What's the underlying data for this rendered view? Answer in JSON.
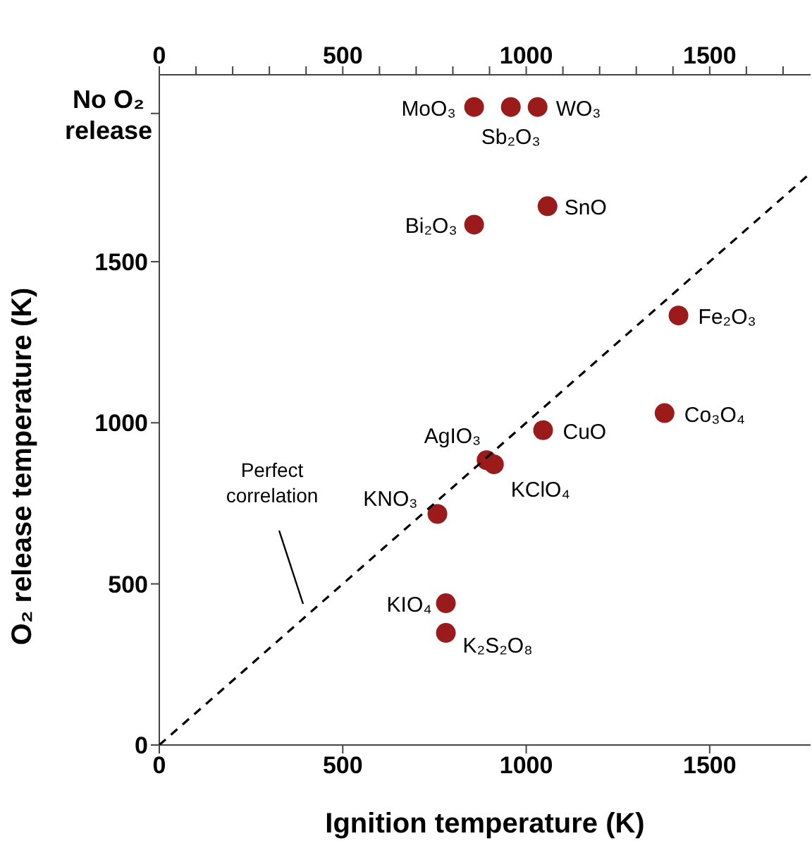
{
  "chart_data": {
    "type": "scatter",
    "xlabel": "Ignition temperature (K)",
    "ylabel": "O₂ release temperature (K)",
    "xlim": [
      0,
      1775
    ],
    "xticks": [
      0,
      500,
      1000,
      1500
    ],
    "x2lim": [
      0,
      1775
    ],
    "x2ticks": [
      0,
      {
        "value": 100,
        "label": null
      },
      {
        "value": 200,
        "label": null
      },
      {
        "value": 300,
        "label": null
      },
      {
        "value": 400,
        "label": null
      },
      500,
      {
        "value": 600,
        "label": null
      },
      {
        "value": 700,
        "label": null
      },
      {
        "value": 800,
        "label": null
      },
      {
        "value": 900,
        "label": null
      },
      1000,
      {
        "value": 1100,
        "label": null
      },
      {
        "value": 1200,
        "label": null
      },
      {
        "value": 1300,
        "label": null
      },
      {
        "value": 1400,
        "label": null
      },
      1500,
      {
        "value": 1600,
        "label": null
      },
      {
        "value": 1700,
        "label": null
      }
    ],
    "ylim": [
      0,
      2080
    ],
    "yticks": [
      0,
      500,
      1000,
      1500,
      {
        "value": 1960,
        "label": "No O₂ release"
      }
    ],
    "marker": "circle",
    "series": [
      {
        "color": "#9b1b1b",
        "x": [
          858,
          1058,
          1415,
          1377,
          1046,
          892,
          912,
          758,
          781,
          781,
          858,
          958,
          1031
        ],
        "values": [
          1615,
          1672,
          1333,
          1030,
          977,
          884,
          871,
          717,
          440,
          348,
          1980,
          1980,
          1980
        ]
      },
      {
        "type": "line",
        "color": "#000000",
        "line_style": "dashed",
        "marker": "none",
        "x": [
          0,
          1775
        ],
        "values": [
          0,
          1775
        ]
      }
    ],
    "annotations": [
      {
        "text": "Bi₂O₃",
        "x": 858,
        "y": 1615
      },
      {
        "text": "SnO",
        "x": 1058,
        "y": 1672
      },
      {
        "text": "Fe₂O₃",
        "x": 1415,
        "y": 1333
      },
      {
        "text": "Co₃O₄",
        "x": 1377,
        "y": 1030
      },
      {
        "text": "CuO",
        "x": 1046,
        "y": 977
      },
      {
        "text": "AgIO₃",
        "x": 892,
        "y": 884
      },
      {
        "text": "KClO₄",
        "x": 912,
        "y": 871
      },
      {
        "text": "KNO₃",
        "x": 758,
        "y": 717
      },
      {
        "text": "KIO₄",
        "x": 781,
        "y": 440
      },
      {
        "text": "K₂S₂O₈",
        "x": 781,
        "y": 348
      },
      {
        "text": "MoO₃",
        "x": 858,
        "y": 1980
      },
      {
        "text": "Sb₂O₃",
        "x": 958,
        "y": 1980
      },
      {
        "text": "WO₃",
        "x": 1031,
        "y": 1980
      },
      "Perfect correlation"
    ]
  }
}
